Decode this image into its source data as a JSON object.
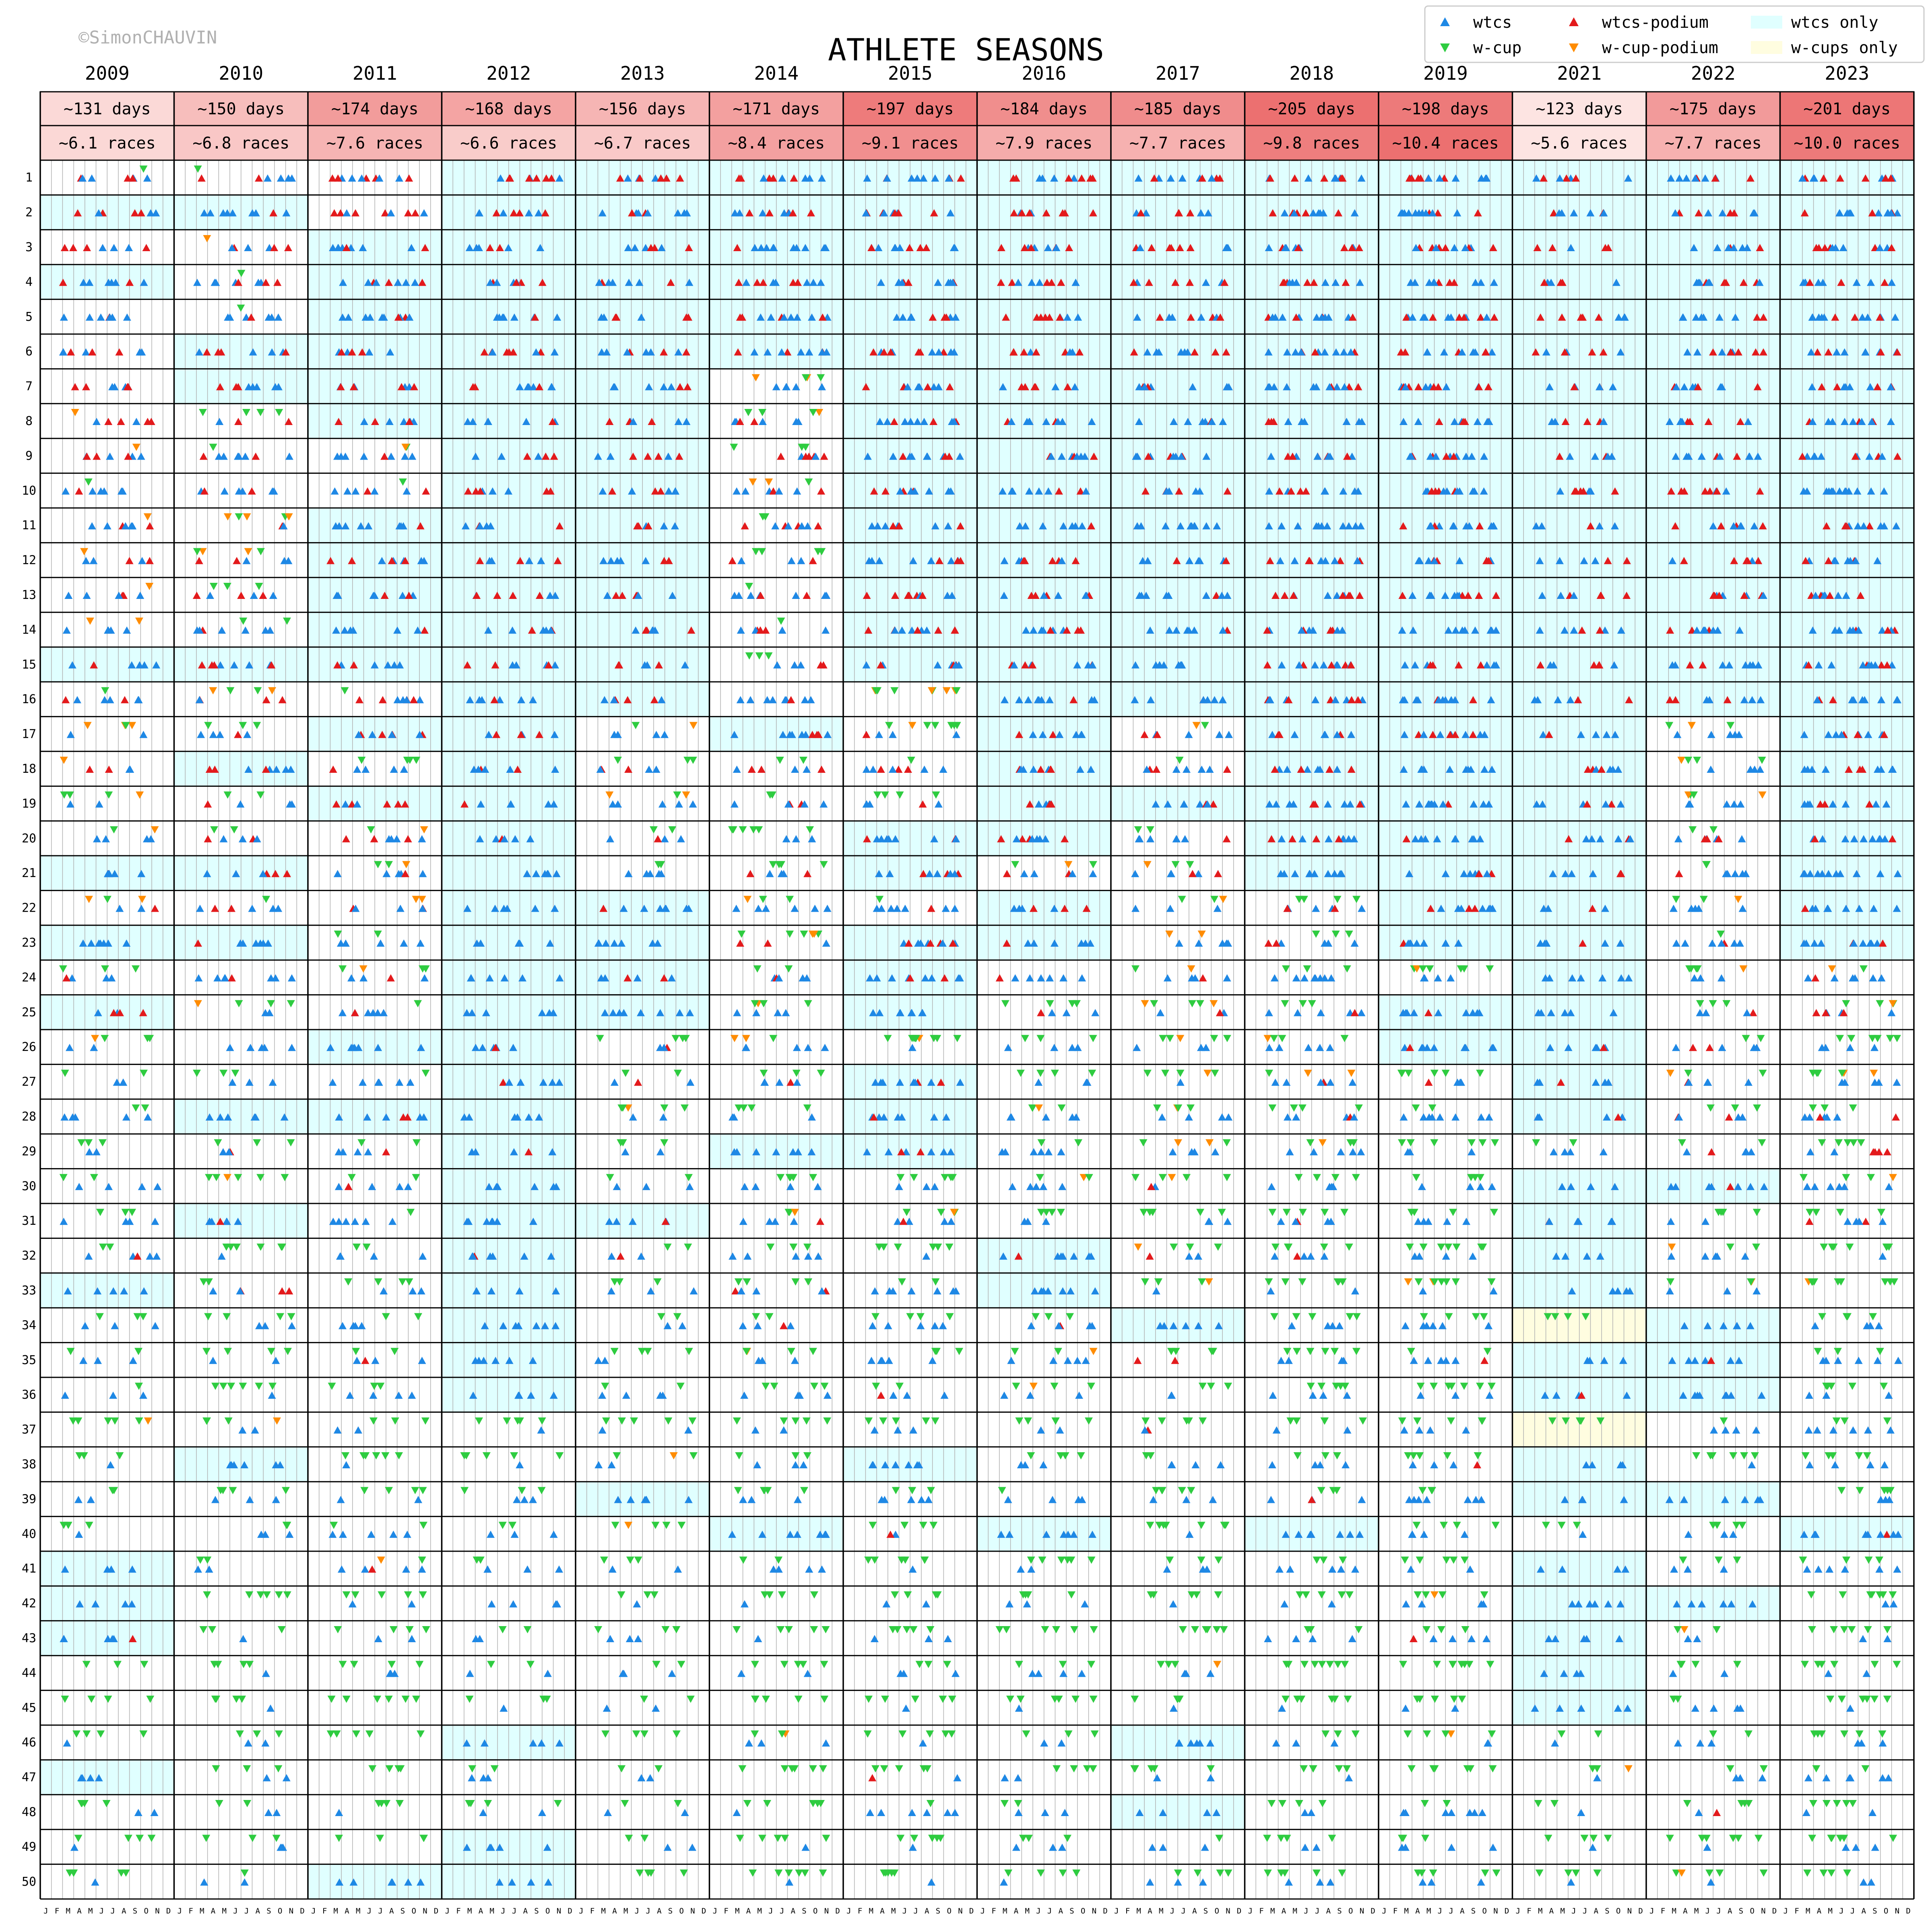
{
  "watermark": "©SimonCHAUVIN",
  "chart_data": {
    "type": "scatter",
    "title": "ATHLETE SEASONS",
    "years": [
      "2009",
      "2010",
      "2011",
      "2012",
      "2013",
      "2014",
      "2015",
      "2016",
      "2017",
      "2018",
      "2019",
      "2021",
      "2022",
      "2023"
    ],
    "days_labels": [
      "~131 days",
      "~150 days",
      "~174 days",
      "~168 days",
      "~156 days",
      "~171 days",
      "~197 days",
      "~184 days",
      "~185 days",
      "~205 days",
      "~198 days",
      "~123 days",
      "~175 days",
      "~201 days"
    ],
    "races_labels": [
      "~6.1 races",
      "~6.8 races",
      "~7.6 races",
      "~6.6 races",
      "~6.7 races",
      "~8.4 races",
      "~9.1 races",
      "~7.9 races",
      "~7.7 races",
      "~9.8 races",
      "~10.4 races",
      "~5.6 races",
      "~7.7 races",
      "~10.0 races"
    ],
    "avg_days": [
      131,
      150,
      174,
      168,
      156,
      171,
      197,
      184,
      185,
      205,
      198,
      123,
      175,
      201
    ],
    "avg_races": [
      6.1,
      6.8,
      7.6,
      6.6,
      6.7,
      8.4,
      9.1,
      7.9,
      7.7,
      9.8,
      10.4,
      5.6,
      7.7,
      10.0
    ],
    "athlete_ranks": [
      1,
      2,
      3,
      4,
      5,
      6,
      7,
      8,
      9,
      10,
      11,
      12,
      13,
      14,
      15,
      16,
      17,
      18,
      19,
      20,
      21,
      22,
      23,
      24,
      25,
      26,
      27,
      28,
      29,
      30,
      31,
      32,
      33,
      34,
      35,
      36,
      37,
      38,
      39,
      40,
      41,
      42,
      43,
      44,
      45,
      46,
      47,
      48,
      49,
      50
    ],
    "month_labels": [
      "J",
      "F",
      "M",
      "A",
      "M",
      "J",
      "J",
      "A",
      "S",
      "O",
      "N",
      "D"
    ],
    "legend": [
      {
        "label": "wtcs",
        "symbol": "triangle-up",
        "color": "#1e88e5"
      },
      {
        "label": "wtcs-podium",
        "symbol": "triangle-up",
        "color": "#e31a1c"
      },
      {
        "label": "wtcs only",
        "symbol": "box",
        "color": "#e0ffff"
      },
      {
        "label": "w-cup",
        "symbol": "triangle-down",
        "color": "#2ecc40"
      },
      {
        "label": "w-cup-podium",
        "symbol": "triangle-down",
        "color": "#ff8c00"
      },
      {
        "label": "w-cups only",
        "symbol": "box",
        "color": "#fffde0"
      }
    ],
    "legend_placement": "top-right",
    "wtcs_only_highlight": {
      "2009": [
        2,
        4,
        15,
        21,
        23,
        25,
        33,
        41,
        42,
        43,
        47
      ],
      "2010": [
        2,
        6,
        7,
        15,
        18,
        21,
        23,
        28,
        31,
        38
      ],
      "2011": [
        3,
        4,
        5,
        6,
        7,
        8,
        11,
        12,
        13,
        14,
        15,
        17,
        19,
        26,
        28,
        50
      ],
      "2012": [
        1,
        2,
        3,
        4,
        5,
        6,
        7,
        8,
        9,
        10,
        11,
        12,
        13,
        14,
        15,
        16,
        17,
        18,
        19,
        20,
        21,
        22,
        23,
        24,
        25,
        26,
        27,
        28,
        29,
        30,
        31,
        32,
        33,
        34,
        35,
        36,
        46,
        49,
        50
      ],
      "2013": [
        1,
        2,
        3,
        4,
        5,
        6,
        7,
        8,
        9,
        10,
        11,
        12,
        13,
        14,
        15,
        16,
        22,
        23,
        24,
        25,
        31,
        39
      ],
      "2014": [
        1,
        2,
        3,
        4,
        5,
        6,
        17,
        29,
        40
      ],
      "2015": [
        1,
        2,
        3,
        4,
        5,
        6,
        7,
        8,
        9,
        10,
        11,
        12,
        13,
        14,
        15,
        20,
        21,
        23,
        24,
        25,
        27,
        28,
        29,
        38
      ],
      "2016": [
        1,
        2,
        3,
        4,
        5,
        6,
        7,
        8,
        9,
        10,
        11,
        12,
        13,
        14,
        15,
        16,
        17,
        18,
        19,
        20,
        22,
        23,
        32,
        33,
        40
      ],
      "2017": [
        1,
        2,
        3,
        4,
        5,
        6,
        7,
        8,
        9,
        10,
        11,
        12,
        13,
        14,
        15,
        16,
        19,
        34,
        46,
        48
      ],
      "2018": [
        1,
        2,
        3,
        4,
        5,
        6,
        7,
        8,
        9,
        10,
        11,
        12,
        13,
        14,
        15,
        16,
        17,
        18,
        19,
        20,
        21,
        40
      ],
      "2019": [
        1,
        2,
        3,
        4,
        5,
        6,
        7,
        8,
        9,
        10,
        11,
        12,
        13,
        14,
        15,
        16,
        17,
        18,
        19,
        20,
        21,
        22,
        23,
        25,
        26
      ],
      "2021": [
        1,
        2,
        3,
        4,
        5,
        6,
        7,
        8,
        9,
        10,
        11,
        12,
        13,
        14,
        15,
        16,
        17,
        18,
        19,
        20,
        21,
        22,
        23,
        24,
        25,
        26,
        27,
        28,
        30,
        31,
        32,
        33,
        35,
        36,
        38,
        39,
        41,
        42,
        43,
        44,
        45
      ],
      "2022": [
        1,
        2,
        3,
        4,
        5,
        6,
        7,
        8,
        9,
        10,
        11,
        12,
        13,
        14,
        15,
        16,
        30,
        34,
        35,
        36,
        39,
        42
      ],
      "2023": [
        1,
        2,
        3,
        4,
        5,
        6,
        7,
        8,
        9,
        10,
        11,
        12,
        13,
        14,
        15,
        16,
        17,
        18,
        19,
        20,
        21,
        22,
        23,
        40
      ]
    },
    "wcups_only_highlight": {
      "2021": [
        34,
        37
      ]
    }
  }
}
